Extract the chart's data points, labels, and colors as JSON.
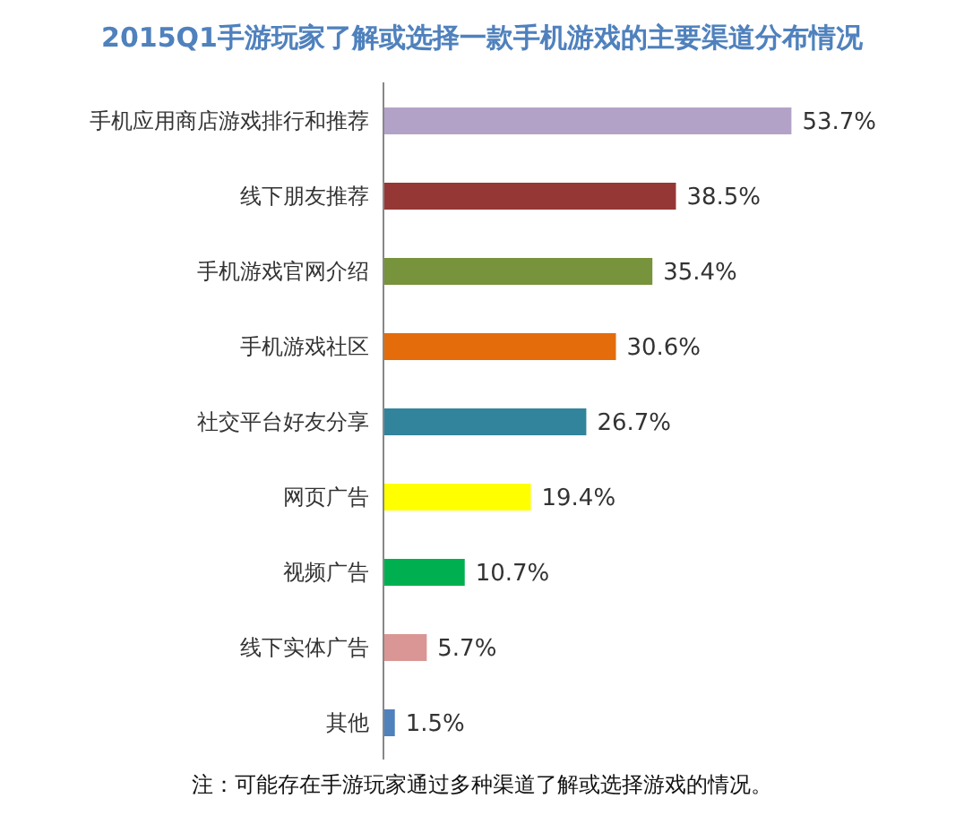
{
  "chart_data": {
    "type": "bar",
    "orientation": "horizontal",
    "title": "2015Q1手游玩家了解或选择一款手机游戏的主要渠道分布情况",
    "categories": [
      "手机应用商店游戏排行和推荐",
      "线下朋友推荐",
      "手机游戏官网介绍",
      "手机游戏社区",
      "社交平台好友分享",
      "网页广告",
      "视频广告",
      "线下实体广告",
      "其他"
    ],
    "values": [
      53.7,
      38.5,
      35.4,
      30.6,
      26.7,
      19.4,
      10.7,
      5.7,
      1.5
    ],
    "colors": [
      "#b3a2c7",
      "#953735",
      "#77933c",
      "#e46c0a",
      "#31849b",
      "#ffff00",
      "#00b050",
      "#d99694",
      "#4f81bd"
    ],
    "value_labels": [
      "53.7%",
      "38.5%",
      "35.4%",
      "30.6%",
      "26.7%",
      "19.4%",
      "10.7%",
      "5.7%",
      "1.5%"
    ],
    "annotations": [
      "注：可能存在手游玩家通过多种渠道了解或选择游戏的情况。"
    ],
    "grid": false,
    "legend": false
  }
}
